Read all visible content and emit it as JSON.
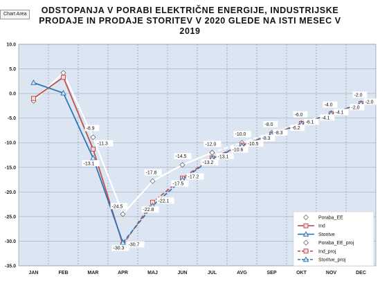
{
  "chart_area_tooltip": "Chart Area",
  "chart_data": {
    "type": "line",
    "title_lines": [
      "ODSTOPANJA V PORABI ELEKTRIČNE ENERGIJE, INDUSTRIJSKE",
      "PRODAJE IN PRODAJE STORITEV V 2020 GLEDE NA ISTI MESEC V",
      "2019"
    ],
    "categories": [
      "JAN",
      "FEB",
      "MAR",
      "APR",
      "MAJ",
      "JUN",
      "JUL",
      "AVG",
      "SEP",
      "OKT",
      "NOV",
      "DEC"
    ],
    "ylim": [
      -35,
      10
    ],
    "yticks": [
      "10.0",
      "5.0",
      "0.0",
      "-5.0",
      "-10.0",
      "-15.0",
      "-20.0",
      "-25.0",
      "-30.0",
      "-35.0"
    ],
    "grid": true,
    "legend_position": "bottom-right",
    "series": [
      {
        "name": "Poraba_EE",
        "color": "#ffffff",
        "marker": "diamond",
        "dash": false,
        "values": [
          -1.5,
          4.2,
          -8.9,
          -24.5,
          -17.8,
          -14.5,
          -12.0,
          null,
          null,
          null,
          null,
          null
        ],
        "labels": [
          null,
          null,
          "-8.9",
          "-24.5",
          "-17.8",
          "-14.5",
          "-12.0",
          null,
          null,
          null,
          null,
          null
        ]
      },
      {
        "name": "Ind",
        "color": "#c0504d",
        "marker": "square",
        "dash": false,
        "values": [
          -1.0,
          3.3,
          -11.3,
          -30.7,
          null,
          null,
          null,
          null,
          null,
          null,
          null,
          null
        ],
        "labels": [
          null,
          null,
          "-11.3",
          "-30.7",
          null,
          null,
          null,
          null,
          null,
          null,
          null,
          null
        ]
      },
      {
        "name": "Storitve",
        "color": "#2e75b6",
        "marker": "triangle",
        "dash": false,
        "values": [
          2.2,
          0.1,
          -13.1,
          -30.3,
          null,
          null,
          null,
          null,
          null,
          null,
          null,
          null
        ],
        "labels": [
          null,
          null,
          "-13.1",
          "-30.3",
          null,
          null,
          null,
          null,
          null,
          null,
          null,
          null
        ]
      },
      {
        "name": "Poraba_EE_proj",
        "color": "#ffffff",
        "marker": "diamond",
        "dash": true,
        "values": [
          null,
          null,
          null,
          null,
          null,
          null,
          -12.0,
          -10.0,
          -8.0,
          -6.0,
          -4.0,
          -2.0
        ],
        "labels": [
          null,
          null,
          null,
          null,
          null,
          null,
          null,
          "-10.0",
          "-8.0",
          "-6.0",
          "-4.0",
          "-2.0"
        ]
      },
      {
        "name": "Ind_proj",
        "color": "#c0504d",
        "marker": "square",
        "dash": true,
        "values": [
          null,
          null,
          null,
          -30.7,
          -22.1,
          -17.2,
          -13.1,
          -10.5,
          -8.3,
          -6.1,
          -4.1,
          -2.0
        ],
        "labels": [
          null,
          null,
          null,
          null,
          "-22.1",
          "-17.2",
          "-13.1",
          "-10.5",
          "-8.3",
          "-6.1",
          "-4.1",
          "-2.0"
        ]
      },
      {
        "name": "Storitve_proj",
        "color": "#2e75b6",
        "marker": "triangle",
        "dash": true,
        "values": [
          null,
          null,
          null,
          -30.3,
          -22.8,
          -17.5,
          -13.2,
          -10.6,
          -8.3,
          -6.2,
          -4.1,
          -2.0
        ],
        "labels": [
          null,
          null,
          null,
          null,
          "-22.8",
          "-17.5",
          "-13.2",
          "-10.6",
          "-8.3",
          "-6.2",
          "-4.1",
          "-2.0"
        ]
      }
    ]
  }
}
